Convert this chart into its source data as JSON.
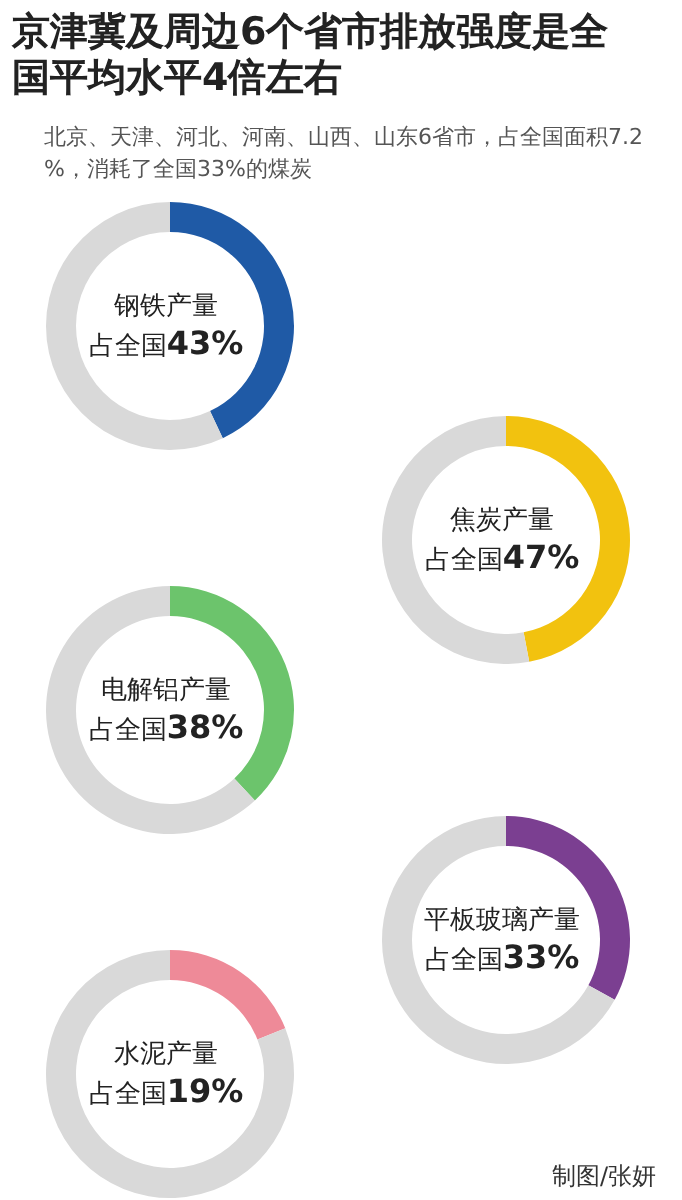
{
  "chart_data": [
    {
      "type": "donut",
      "title": "京津冀及周边6个省市排放强度是全国平均水平4倍左右",
      "subtitle": "北京、天津、河北、河南、山西、山东6省市，占全国面积7.2%，消耗了全国33%的煤炭",
      "xlabel": "钢铁产量",
      "categories": [
        null,
        null
      ],
      "values": [
        43,
        57
      ],
      "colors": [
        "#1f5aa6",
        "#d9d9d9"
      ],
      "annotations": [
        "占全国43%"
      ]
    },
    {
      "type": "donut",
      "xlabel": "焦炭产量",
      "categories": [
        null,
        null
      ],
      "values": [
        47,
        53
      ],
      "colors": [
        "#f2c20f",
        "#d9d9d9"
      ],
      "annotations": [
        "占全国47%"
      ]
    },
    {
      "type": "donut",
      "xlabel": "电解铝产量",
      "categories": [
        null,
        null
      ],
      "values": [
        38,
        62
      ],
      "colors": [
        "#6cc46c",
        "#d9d9d9"
      ],
      "annotations": [
        "占全国38%"
      ]
    },
    {
      "type": "donut",
      "xlabel": "平板玻璃产量",
      "categories": [
        null,
        null
      ],
      "values": [
        33,
        67
      ],
      "colors": [
        "#7b3f91",
        "#d9d9d9"
      ],
      "annotations": [
        "占全国33%"
      ]
    },
    {
      "type": "donut",
      "xlabel": "水泥产量",
      "categories": [
        null,
        null
      ],
      "values": [
        19,
        81
      ],
      "colors": [
        "#ee8a98",
        "#d9d9d9"
      ],
      "annotations": [
        "占全国19%",
        "制图/张妍"
      ]
    }
  ]
}
